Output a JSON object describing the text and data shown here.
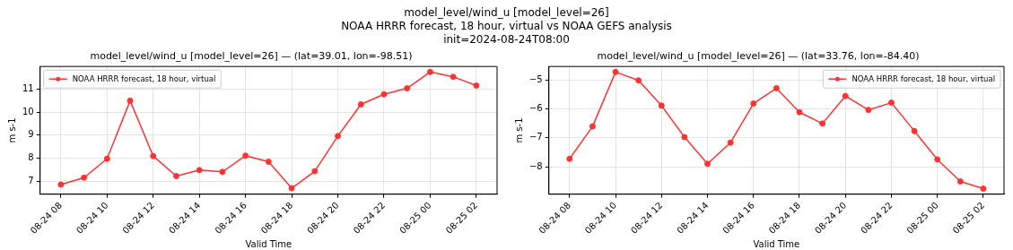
{
  "chart_data": [
    {
      "type": "line",
      "subtitle": "model_level/wind_u [model_level=26]\nNOAA HRRR forecast, 18 hour, virtual vs NOAA GEFS analysis\ninit=2024-08-24T08:00",
      "title": "model_level/wind_u [model_level=26] — (lat=39.01, lon=-98.51)",
      "xlabel": "Valid Time",
      "ylabel": "m s-1",
      "x": [
        "2024-08-24T08:00",
        "2024-08-24T09:00",
        "2024-08-24T10:00",
        "2024-08-24T11:00",
        "2024-08-24T12:00",
        "2024-08-24T13:00",
        "2024-08-24T14:00",
        "2024-08-24T15:00",
        "2024-08-24T16:00",
        "2024-08-24T17:00",
        "2024-08-24T18:00",
        "2024-08-24T19:00",
        "2024-08-24T20:00",
        "2024-08-24T21:00",
        "2024-08-24T22:00",
        "2024-08-24T23:00",
        "2024-08-25T00:00",
        "2024-08-25T01:00",
        "2024-08-25T02:00"
      ],
      "series": [
        {
          "name": "NOAA HRRR forecast, 18 hour, virtual",
          "color": "#ff3333",
          "values": [
            6.85,
            7.15,
            7.97,
            10.5,
            8.09,
            7.22,
            7.48,
            7.4,
            8.11,
            7.84,
            6.69,
            7.43,
            8.96,
            10.34,
            10.78,
            11.04,
            11.75,
            11.54,
            11.16
          ]
        }
      ],
      "xlim": [
        "2024-08-24T07:06",
        "2024-08-25T02:54"
      ],
      "xticks": [
        {
          "value": "2024-08-24T08:00",
          "label": "08-24 08"
        },
        {
          "value": "2024-08-24T10:00",
          "label": "08-24 10"
        },
        {
          "value": "2024-08-24T12:00",
          "label": "08-24 12"
        },
        {
          "value": "2024-08-24T14:00",
          "label": "08-24 14"
        },
        {
          "value": "2024-08-24T16:00",
          "label": "08-24 16"
        },
        {
          "value": "2024-08-24T18:00",
          "label": "08-24 18"
        },
        {
          "value": "2024-08-24T20:00",
          "label": "08-24 20"
        },
        {
          "value": "2024-08-24T22:00",
          "label": "08-24 22"
        },
        {
          "value": "2024-08-25T00:00",
          "label": "08-25 00"
        },
        {
          "value": "2024-08-25T02:00",
          "label": "08-25 02"
        }
      ],
      "ylim": [
        6.43,
        11.99
      ],
      "yticks": [
        7,
        8,
        9,
        10,
        11
      ],
      "grid": true,
      "legend": "top left",
      "marker": "circle",
      "line_style": "solid"
    },
    {
      "type": "line",
      "title": "model_level/wind_u [model_level=26] — (lat=33.76, lon=-84.40)",
      "xlabel": "Valid Time",
      "ylabel": "m s-1",
      "x": [
        "2024-08-24T08:00",
        "2024-08-24T09:00",
        "2024-08-24T10:00",
        "2024-08-24T11:00",
        "2024-08-24T12:00",
        "2024-08-24T13:00",
        "2024-08-24T14:00",
        "2024-08-24T15:00",
        "2024-08-24T16:00",
        "2024-08-24T17:00",
        "2024-08-24T18:00",
        "2024-08-24T19:00",
        "2024-08-24T20:00",
        "2024-08-24T21:00",
        "2024-08-24T22:00",
        "2024-08-24T23:00",
        "2024-08-25T00:00",
        "2024-08-25T01:00",
        "2024-08-25T02:00"
      ],
      "series": [
        {
          "name": "NOAA HRRR forecast, 18 hour, virtual",
          "color": "#ff3333",
          "values": [
            -7.73,
            -6.61,
            -4.73,
            -5.02,
            -5.89,
            -6.98,
            -7.9,
            -7.17,
            -5.82,
            -5.29,
            -6.12,
            -6.51,
            -5.56,
            -6.04,
            -5.79,
            -6.77,
            -7.75,
            -8.51,
            -8.76
          ]
        }
      ],
      "xlim": [
        "2024-08-24T07:06",
        "2024-08-25T02:54"
      ],
      "xticks": [
        {
          "value": "2024-08-24T08:00",
          "label": "08-24 08"
        },
        {
          "value": "2024-08-24T10:00",
          "label": "08-24 10"
        },
        {
          "value": "2024-08-24T12:00",
          "label": "08-24 12"
        },
        {
          "value": "2024-08-24T14:00",
          "label": "08-24 14"
        },
        {
          "value": "2024-08-24T16:00",
          "label": "08-24 16"
        },
        {
          "value": "2024-08-24T18:00",
          "label": "08-24 18"
        },
        {
          "value": "2024-08-24T20:00",
          "label": "08-24 20"
        },
        {
          "value": "2024-08-24T22:00",
          "label": "08-24 22"
        },
        {
          "value": "2024-08-25T00:00",
          "label": "08-25 00"
        },
        {
          "value": "2024-08-25T02:00",
          "label": "08-25 02"
        }
      ],
      "ylim": [
        -8.95,
        -4.54
      ],
      "yticks": [
        {
          "value": -8,
          "label": "−8"
        },
        {
          "value": -7,
          "label": "−7"
        },
        {
          "value": -6,
          "label": "−6"
        },
        {
          "value": -5,
          "label": "−5"
        }
      ],
      "grid": true,
      "legend": "top right",
      "marker": "circle",
      "line_style": "solid"
    }
  ]
}
